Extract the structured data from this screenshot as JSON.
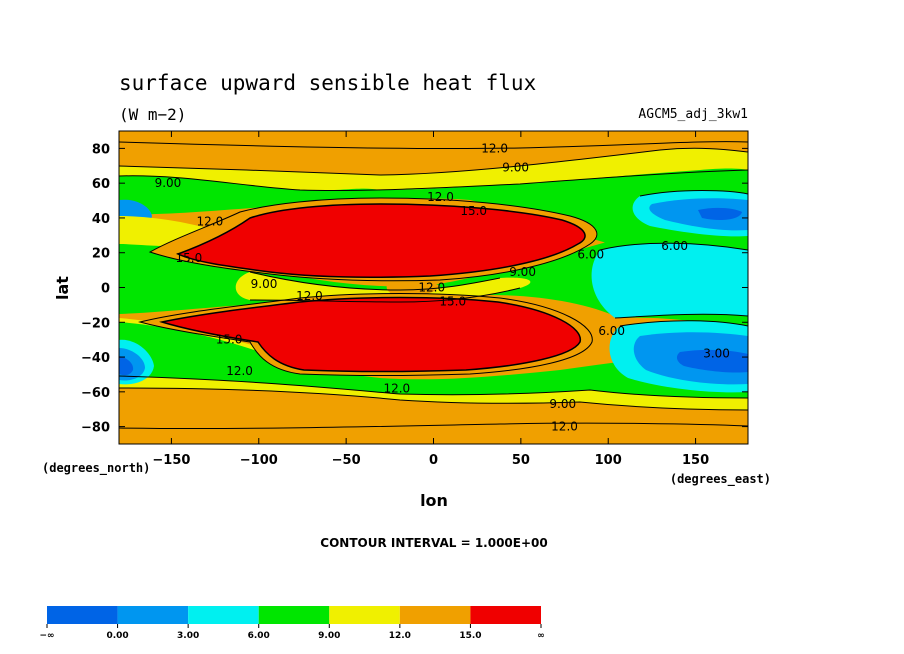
{
  "chart_data": {
    "type": "heatmap",
    "title": "surface upward sensible heat flux",
    "units": "(W m−2)",
    "case_name": "AGCM5_adj_3kw1",
    "xlabel": "lon",
    "ylabel": "lat",
    "x_unit_label": "(degrees_east)",
    "y_unit_label": "(degrees_north)",
    "xlim": [
      -180,
      180
    ],
    "ylim": [
      -90,
      90
    ],
    "x_ticks": [
      "−150",
      "−100",
      "−50",
      "0",
      "50",
      "100",
      "150"
    ],
    "x_tick_values": [
      -150,
      -100,
      -50,
      0,
      50,
      100,
      150
    ],
    "y_ticks": [
      "80",
      "60",
      "40",
      "20",
      "0",
      "−20",
      "−40",
      "−60",
      "−80"
    ],
    "y_tick_values": [
      80,
      60,
      40,
      20,
      0,
      -20,
      -40,
      -60,
      -80
    ],
    "contour_interval_text": "CONTOUR INTERVAL = 1.000E+00",
    "colorbar": {
      "colors": [
        "#0064e6",
        "#0096f0",
        "#00f0f0",
        "#00e600",
        "#f0f000",
        "#f0a000",
        "#f00000"
      ],
      "labels": [
        "−∞",
        "0.00",
        "3.00",
        "6.00",
        "9.00",
        "12.0",
        "15.0",
        "∞"
      ]
    },
    "contour_labels": [
      {
        "text": "12.0",
        "lon": 35,
        "lat": 80
      },
      {
        "text": "9.00",
        "lon": 47,
        "lat": 69
      },
      {
        "text": "9.00",
        "lon": -152,
        "lat": 60
      },
      {
        "text": "12.0",
        "lon": 4,
        "lat": 52
      },
      {
        "text": "15.0",
        "lon": 23,
        "lat": 44
      },
      {
        "text": "12.0",
        "lon": -128,
        "lat": 38
      },
      {
        "text": "15.0",
        "lon": -140,
        "lat": 17
      },
      {
        "text": "6.00",
        "lon": 90,
        "lat": 19
      },
      {
        "text": "6.00",
        "lon": 138,
        "lat": 24
      },
      {
        "text": "9.00",
        "lon": 51,
        "lat": 9
      },
      {
        "text": "9.00",
        "lon": -97,
        "lat": 2
      },
      {
        "text": "12.0",
        "lon": -71,
        "lat": -5
      },
      {
        "text": "12.0",
        "lon": -1,
        "lat": 0
      },
      {
        "text": "15.0",
        "lon": 11,
        "lat": -8
      },
      {
        "text": "6.00",
        "lon": 102,
        "lat": -25
      },
      {
        "text": "15.0",
        "lon": -117,
        "lat": -30
      },
      {
        "text": "3.00",
        "lon": 162,
        "lat": -38
      },
      {
        "text": "12.0",
        "lon": -111,
        "lat": -48
      },
      {
        "text": "12.0",
        "lon": -21,
        "lat": -58
      },
      {
        "text": "9.00",
        "lon": 74,
        "lat": -67
      },
      {
        "text": "12.0",
        "lon": 75,
        "lat": -80
      }
    ]
  }
}
